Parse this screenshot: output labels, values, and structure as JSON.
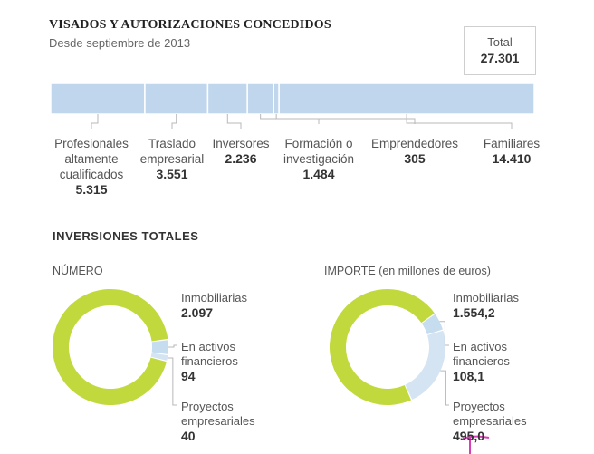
{
  "title": "VISADOS Y AUTORIZACIONES CONCEDIDOS",
  "subtitle": "Desde septiembre de 2013",
  "total": {
    "label": "Total",
    "value": "27.301"
  },
  "section_title": "INVERSIONES TOTALES",
  "colors": {
    "bar": "#bfd6ec",
    "green": "#c2d93e",
    "light": "#c6dcef",
    "leader": "#b8b8b8",
    "marker": "#d63fb8"
  },
  "chart_data": [
    {
      "type": "bar",
      "orientation": "horizontal-stacked",
      "categories": [
        "Profesionales altamente cualificados",
        "Traslado empresarial",
        "Inversores",
        "Formación o investigación",
        "Emprendedores",
        "Familiares"
      ],
      "values": [
        5315,
        3551,
        2236,
        1484,
        305,
        14410
      ],
      "value_labels": [
        "5.315",
        "3.551",
        "2.236",
        "1.484",
        "305",
        "14.410"
      ],
      "label_lines": [
        [
          "Profesionales",
          "altamente",
          "cualificados"
        ],
        [
          "Traslado",
          "empresarial"
        ],
        [
          "Inversores"
        ],
        [
          "Formación o",
          "investigación"
        ],
        [
          "Emprendedores"
        ],
        [
          "Familiares"
        ]
      ],
      "total": 27301
    },
    {
      "type": "pie",
      "variant": "donut",
      "title": "NÚMERO",
      "categories": [
        "Inmobiliarias",
        "En activos financieros",
        "Proyectos empresariales"
      ],
      "values": [
        2097,
        94,
        40
      ],
      "value_labels": [
        "2.097",
        "94",
        "40"
      ],
      "label_lines": [
        [
          "Inmobiliarias"
        ],
        [
          "En activos",
          "financieros"
        ],
        [
          "Proyectos",
          "empresariales"
        ]
      ]
    },
    {
      "type": "pie",
      "variant": "donut",
      "title": "IMPORTE (en millones de euros)",
      "categories": [
        "Inmobiliarias",
        "En activos financieros",
        "Proyectos empresariales"
      ],
      "values": [
        1554.2,
        108.1,
        495.0
      ],
      "value_labels": [
        "1.554,2",
        "108,1",
        "495,0"
      ],
      "label_lines": [
        [
          "Inmobiliarias"
        ],
        [
          "En activos",
          "financieros"
        ],
        [
          "Proyectos",
          "empresariales"
        ]
      ]
    }
  ]
}
